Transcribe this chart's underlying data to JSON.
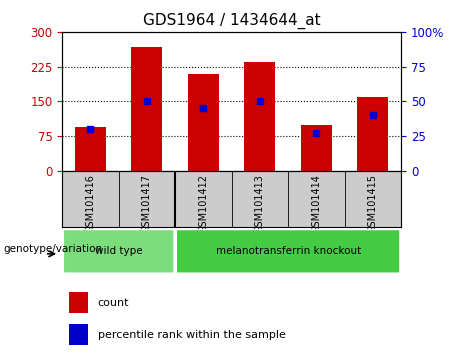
{
  "title": "GDS1964 / 1434644_at",
  "samples": [
    "GSM101416",
    "GSM101417",
    "GSM101412",
    "GSM101413",
    "GSM101414",
    "GSM101415"
  ],
  "counts": [
    95,
    268,
    210,
    235,
    100,
    160
  ],
  "percentiles": [
    30,
    50,
    45,
    50,
    27,
    40
  ],
  "left_ylim": [
    0,
    300
  ],
  "right_ylim": [
    0,
    100
  ],
  "left_yticks": [
    0,
    75,
    150,
    225,
    300
  ],
  "right_yticks": [
    0,
    25,
    50,
    75,
    100
  ],
  "right_yticklabels": [
    "0",
    "25",
    "50",
    "75",
    "100%"
  ],
  "grid_values": [
    75,
    150,
    225
  ],
  "bar_color": "#cc0000",
  "dot_color": "#0000cc",
  "groups": [
    {
      "label": "wild type",
      "indices": [
        0,
        1
      ],
      "color": "#7cdd7c"
    },
    {
      "label": "melanotransferrin knockout",
      "indices": [
        2,
        3,
        4,
        5
      ],
      "color": "#44cc44"
    }
  ],
  "group_label": "genotype/variation",
  "legend_count_label": "count",
  "legend_pct_label": "percentile rank within the sample",
  "axis_label_color_left": "#cc0000",
  "axis_label_color_right": "#0000cc",
  "bar_width": 0.55,
  "sample_bg_color": "#cccccc",
  "plot_bg_color": "#ffffff"
}
